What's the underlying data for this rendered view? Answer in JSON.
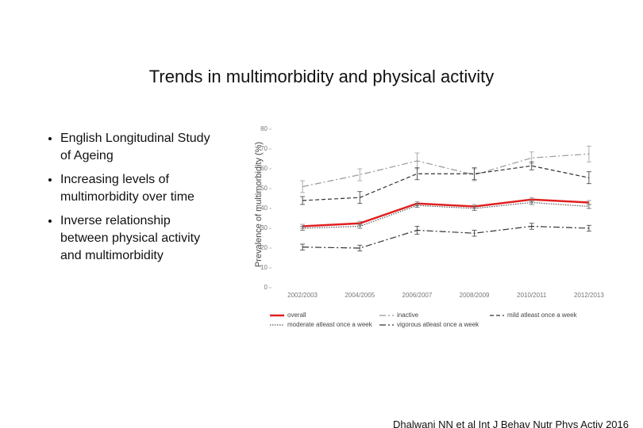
{
  "slide_title": "Trends in multimorbidity and physical activity",
  "bullets": [
    "English Longitudinal Study of Ageing",
    "Increasing levels of multimorbidity over time",
    "Inverse relationship between physical activity and multimorbidity"
  ],
  "citation": "Dhalwani NN et al Int J Behav Nutr Phys Activ 2016",
  "chart_data": {
    "type": "line",
    "y_label": "Prevalence of multimorbidity (%)",
    "categories": [
      "2002/2003",
      "2004/2005",
      "2006/2007",
      "2008/2009",
      "2010/2011",
      "2012/2013"
    ],
    "ylim": [
      0,
      80
    ],
    "yticks": [
      0,
      10,
      20,
      30,
      40,
      50,
      60,
      70,
      80
    ],
    "series": [
      {
        "name": "overall",
        "color": "#e02020",
        "style": "solid",
        "values": [
          31,
          32.5,
          42.5,
          41,
          44.5,
          43
        ],
        "errors": [
          1,
          1,
          1,
          1,
          1,
          1
        ]
      },
      {
        "name": "inactive",
        "color": "#999999",
        "style": "dashdot",
        "values": [
          51,
          57,
          64,
          57,
          65.5,
          67.5
        ],
        "errors": [
          3,
          3,
          4,
          3,
          3,
          4
        ]
      },
      {
        "name": "mild atleast once a week",
        "color": "#333333",
        "style": "dashed",
        "values": [
          44,
          45.5,
          57.5,
          57.5,
          61.5,
          55.5
        ],
        "errors": [
          2,
          3,
          3,
          3,
          2,
          3
        ]
      },
      {
        "name": "moderate atleast once a week",
        "color": "#555555",
        "style": "dotted",
        "values": [
          30,
          31,
          41.5,
          40,
          43,
          41
        ],
        "errors": [
          1,
          1,
          1,
          1,
          1,
          1
        ]
      },
      {
        "name": "vigorous atleast once a week",
        "color": "#333333",
        "style": "dashdot",
        "values": [
          20.5,
          20,
          29,
          27.5,
          31,
          30
        ],
        "errors": [
          1.5,
          1.5,
          2,
          1.5,
          1.5,
          1.5
        ]
      }
    ]
  }
}
